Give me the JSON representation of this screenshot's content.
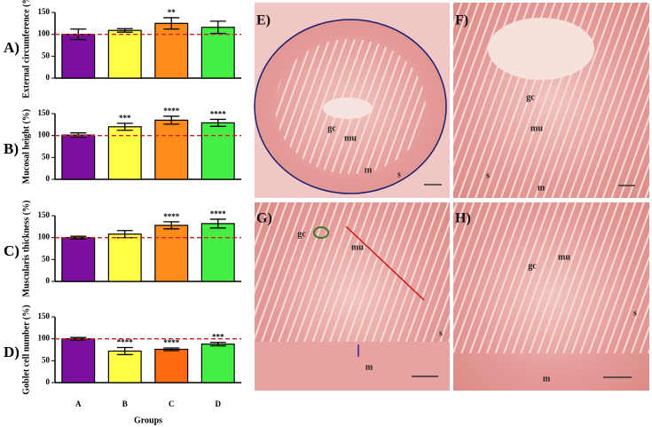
{
  "chart_data": [
    {
      "type": "bar",
      "panel": "A)",
      "ylabel": "External circumference (%)",
      "categories": [
        null,
        null,
        null,
        null
      ],
      "values": [
        100,
        109,
        125,
        116
      ],
      "errors": [
        12,
        4,
        13,
        14
      ],
      "annotations": [
        null,
        null,
        "**",
        null
      ],
      "colors": [
        "#7a0fa0",
        "#ffff44",
        "#ff8c1a",
        "#44ee44"
      ],
      "ylim": [
        0,
        150
      ],
      "yticks": [
        0,
        50,
        100,
        150
      ],
      "reference_line": 100
    },
    {
      "type": "bar",
      "panel": "B)",
      "ylabel": "Mucosal height (%)",
      "categories": [
        null,
        null,
        null,
        null
      ],
      "values": [
        101,
        120,
        135,
        129
      ],
      "errors": [
        5,
        8,
        9,
        8
      ],
      "annotations": [
        null,
        "***",
        "****",
        "****"
      ],
      "colors": [
        "#7a0fa0",
        "#ffff44",
        "#ff8c1a",
        "#44ee44"
      ],
      "ylim": [
        0,
        150
      ],
      "yticks": [
        0,
        50,
        100,
        150
      ],
      "reference_line": 100
    },
    {
      "type": "bar",
      "panel": "C)",
      "ylabel": "Muscularis thickness (%)",
      "categories": [
        null,
        null,
        null,
        null
      ],
      "values": [
        100,
        108,
        128,
        132
      ],
      "errors": [
        3,
        8,
        8,
        10
      ],
      "annotations": [
        null,
        null,
        "****",
        "****"
      ],
      "colors": [
        "#7a0fa0",
        "#ffff44",
        "#ff8c1a",
        "#44ee44"
      ],
      "ylim": [
        0,
        150
      ],
      "yticks": [
        0,
        50,
        100,
        150
      ],
      "reference_line": 100
    },
    {
      "type": "bar",
      "panel": "D)",
      "ylabel": "Goblet cell number (%)",
      "xlabel": "Groups",
      "categories": [
        "A",
        "B",
        "C",
        "D"
      ],
      "values": [
        100,
        72,
        76,
        88
      ],
      "errors": [
        3,
        8,
        3,
        4
      ],
      "annotations": [
        null,
        "****",
        "****",
        "***"
      ],
      "colors": [
        "#7a0fa0",
        "#ffff44",
        "#ff6a10",
        "#44ee44"
      ],
      "ylim": [
        0,
        150
      ],
      "yticks": [
        0,
        50,
        100,
        150
      ],
      "reference_line": 100
    }
  ],
  "micrographs": [
    {
      "panel": "E)",
      "labels": [
        "gc",
        "mu",
        "m",
        "s"
      ]
    },
    {
      "panel": "F)",
      "labels": [
        "gc",
        "mu",
        "m",
        "s"
      ]
    },
    {
      "panel": "G)",
      "labels": [
        "gc",
        "mu",
        "m",
        "s"
      ]
    },
    {
      "panel": "H)",
      "labels": [
        "gc",
        "mu",
        "m",
        "s"
      ]
    }
  ]
}
